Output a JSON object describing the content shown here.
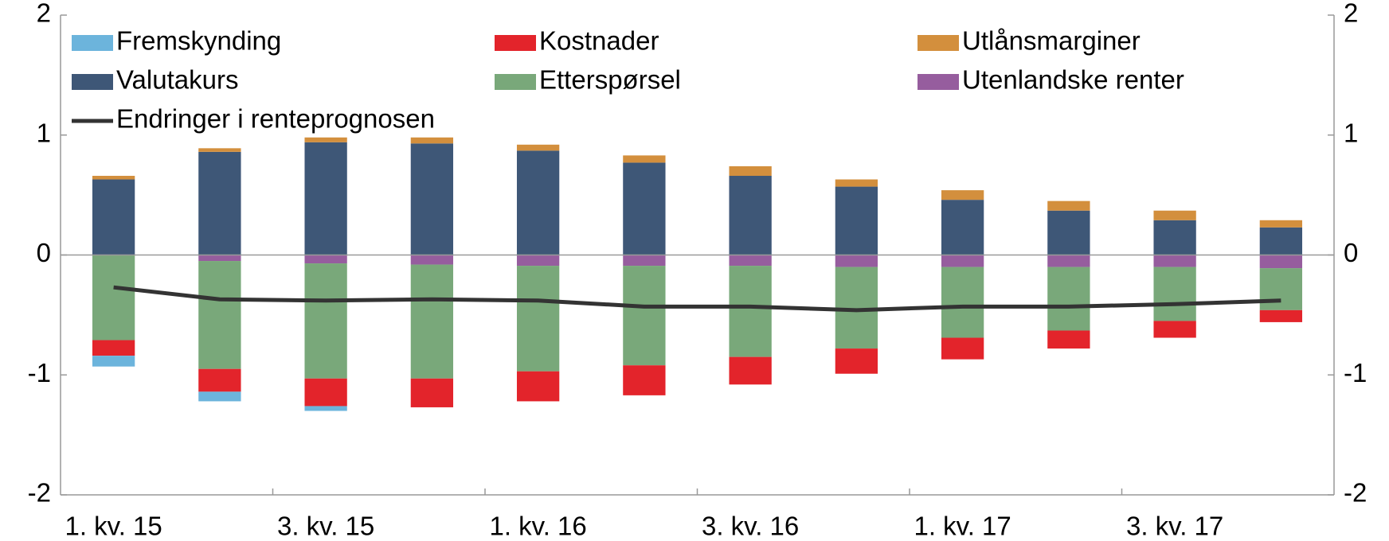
{
  "chart_data": {
    "type": "bar",
    "stacked": true,
    "categories": [
      "1. kv. 15",
      null,
      "3. kv. 15",
      null,
      "1. kv. 16",
      null,
      "3. kv. 16",
      null,
      "1. kv. 17",
      null,
      "3. kv. 17",
      null
    ],
    "ylim": [
      -2,
      2
    ],
    "yticks": [
      -2,
      -1,
      0,
      1,
      2
    ],
    "y2lim": [
      -2,
      2
    ],
    "y2ticks": [
      -2,
      -1,
      0,
      1,
      2
    ],
    "series": [
      {
        "name": "Valutakurs",
        "color": "#3e5777",
        "values": [
          0.63,
          0.86,
          0.94,
          0.93,
          0.87,
          0.77,
          0.66,
          0.57,
          0.46,
          0.37,
          0.29,
          0.23
        ]
      },
      {
        "name": "Utlånsmarginer",
        "color": "#d38f3d",
        "values": [
          0.03,
          0.03,
          0.04,
          0.05,
          0.05,
          0.06,
          0.08,
          0.06,
          0.08,
          0.08,
          0.08,
          0.06
        ]
      },
      {
        "name": "Utenlandske renter",
        "color": "#965d9e",
        "values": [
          0,
          -0.05,
          -0.07,
          -0.08,
          -0.09,
          -0.09,
          -0.09,
          -0.1,
          -0.1,
          -0.1,
          -0.1,
          -0.11
        ]
      },
      {
        "name": "Etterspørsel",
        "color": "#79a87a",
        "values": [
          -0.71,
          -0.9,
          -0.96,
          -0.95,
          -0.88,
          -0.83,
          -0.76,
          -0.68,
          -0.59,
          -0.53,
          -0.45,
          -0.35
        ]
      },
      {
        "name": "Kostnader",
        "color": "#e3242b",
        "values": [
          -0.13,
          -0.19,
          -0.23,
          -0.24,
          -0.25,
          -0.25,
          -0.23,
          -0.21,
          -0.18,
          -0.15,
          -0.14,
          -0.1
        ]
      },
      {
        "name": "Fremskynding",
        "color": "#6cb4dc",
        "values": [
          -0.09,
          -0.08,
          -0.04,
          0,
          0,
          0,
          0,
          0,
          0,
          0,
          0,
          0
        ]
      },
      {
        "name": "Endringer i renteprognosen",
        "type": "line",
        "color": "#333333",
        "values": [
          -0.27,
          -0.37,
          -0.38,
          -0.37,
          -0.38,
          -0.43,
          -0.43,
          -0.46,
          -0.43,
          -0.43,
          -0.41,
          -0.38
        ]
      }
    ]
  }
}
